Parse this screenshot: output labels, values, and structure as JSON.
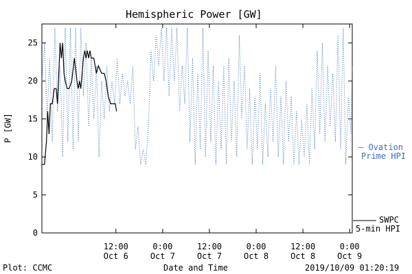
{
  "chart_data": {
    "type": "line",
    "title": "Hemispheric Power [GW]",
    "ylabel": "P [GW]",
    "xlabel": "Date and Time",
    "ylim": [
      0,
      27.5
    ],
    "yticks": [
      0,
      5,
      10,
      15,
      20,
      25
    ],
    "xlim": [
      "2019-10-05T17:00",
      "2019-10-09T00:40"
    ],
    "xticks": [
      {
        "t": "2019-10-06T12:00",
        "label1": "12:00",
        "label2": "Oct 6"
      },
      {
        "t": "2019-10-07T00:00",
        "label1": "0:00",
        "label2": "Oct 7"
      },
      {
        "t": "2019-10-07T12:00",
        "label1": "12:00",
        "label2": "Oct 7"
      },
      {
        "t": "2019-10-08T00:00",
        "label1": "0:00",
        "label2": "Oct 8"
      },
      {
        "t": "2019-10-08T12:00",
        "label1": "12:00",
        "label2": "Oct 8"
      },
      {
        "t": "2019-10-09T00:00",
        "label1": "0:00",
        "label2": "Oct 9"
      }
    ],
    "grid": false,
    "legend_position": "right",
    "series": [
      {
        "name": "SWPC 5-min HPI",
        "name_lines": [
          "SWPC",
          "5-min HPI"
        ],
        "color": "#000000",
        "style": "solid",
        "points": [
          [
            "2019-10-05T17:00",
            9
          ],
          [
            "2019-10-05T17:40",
            9
          ],
          [
            "2019-10-05T18:10",
            12
          ],
          [
            "2019-10-05T18:30",
            16
          ],
          [
            "2019-10-05T18:50",
            13
          ],
          [
            "2019-10-05T19:10",
            17
          ],
          [
            "2019-10-05T19:40",
            17
          ],
          [
            "2019-10-05T20:10",
            19
          ],
          [
            "2019-10-05T20:40",
            19
          ],
          [
            "2019-10-05T21:00",
            17
          ],
          [
            "2019-10-05T21:20",
            21
          ],
          [
            "2019-10-05T21:40",
            25
          ],
          [
            "2019-10-05T22:00",
            23
          ],
          [
            "2019-10-05T22:20",
            25
          ],
          [
            "2019-10-05T22:40",
            21
          ],
          [
            "2019-10-05T23:00",
            20
          ],
          [
            "2019-10-05T23:30",
            19
          ],
          [
            "2019-10-06T00:00",
            19
          ],
          [
            "2019-10-06T00:40",
            20
          ],
          [
            "2019-10-06T01:20",
            23
          ],
          [
            "2019-10-06T02:00",
            20
          ],
          [
            "2019-10-06T02:20",
            19
          ],
          [
            "2019-10-06T02:40",
            20
          ],
          [
            "2019-10-06T03:00",
            19
          ],
          [
            "2019-10-06T03:40",
            23
          ],
          [
            "2019-10-06T04:00",
            24
          ],
          [
            "2019-10-06T04:20",
            23
          ],
          [
            "2019-10-06T04:40",
            24
          ],
          [
            "2019-10-06T05:00",
            23
          ],
          [
            "2019-10-06T05:20",
            24
          ],
          [
            "2019-10-06T05:40",
            23
          ],
          [
            "2019-10-06T06:20",
            23
          ],
          [
            "2019-10-06T07:00",
            21
          ],
          [
            "2019-10-06T07:30",
            22
          ],
          [
            "2019-10-06T08:20",
            21
          ],
          [
            "2019-10-06T09:00",
            21
          ],
          [
            "2019-10-06T09:30",
            20
          ],
          [
            "2019-10-06T10:00",
            18
          ],
          [
            "2019-10-06T10:40",
            17
          ],
          [
            "2019-10-06T11:20",
            17
          ],
          [
            "2019-10-06T11:50",
            17
          ],
          [
            "2019-10-06T12:10",
            16
          ]
        ]
      },
      {
        "name": "Ovation Prime HPI",
        "name_lines": [
          "— Ovation",
          "Prime HPI"
        ],
        "color": "#3a6fc4",
        "style": "dotted",
        "points": [
          [
            "2019-10-05T17:00",
            20
          ],
          [
            "2019-10-05T17:40",
            25
          ],
          [
            "2019-10-05T18:20",
            15
          ],
          [
            "2019-10-05T19:00",
            23
          ],
          [
            "2019-10-05T19:40",
            12
          ],
          [
            "2019-10-05T20:20",
            27
          ],
          [
            "2019-10-05T21:00",
            16
          ],
          [
            "2019-10-05T21:40",
            22
          ],
          [
            "2019-10-05T22:20",
            10
          ],
          [
            "2019-10-05T23:00",
            27
          ],
          [
            "2019-10-05T23:40",
            12
          ],
          [
            "2019-10-06T00:20",
            27
          ],
          [
            "2019-10-06T01:00",
            11
          ],
          [
            "2019-10-06T01:40",
            27
          ],
          [
            "2019-10-06T02:20",
            12
          ],
          [
            "2019-10-06T03:00",
            27
          ],
          [
            "2019-10-06T03:40",
            18
          ],
          [
            "2019-10-06T04:20",
            25
          ],
          [
            "2019-10-06T05:00",
            14
          ],
          [
            "2019-10-06T05:40",
            23
          ],
          [
            "2019-10-06T06:20",
            15
          ],
          [
            "2019-10-06T07:00",
            22
          ],
          [
            "2019-10-06T07:40",
            10
          ],
          [
            "2019-10-06T08:20",
            20
          ],
          [
            "2019-10-06T09:00",
            15
          ],
          [
            "2019-10-06T09:40",
            22
          ],
          [
            "2019-10-06T10:20",
            16
          ],
          [
            "2019-10-06T11:00",
            20
          ],
          [
            "2019-10-06T11:40",
            17
          ],
          [
            "2019-10-06T12:20",
            23
          ],
          [
            "2019-10-06T13:00",
            17
          ],
          [
            "2019-10-06T13:40",
            21
          ],
          [
            "2019-10-06T14:20",
            18
          ],
          [
            "2019-10-06T15:00",
            20
          ],
          [
            "2019-10-06T15:40",
            17
          ],
          [
            "2019-10-06T16:20",
            22
          ],
          [
            "2019-10-06T17:00",
            11
          ],
          [
            "2019-10-06T17:40",
            14
          ],
          [
            "2019-10-06T18:20",
            9
          ],
          [
            "2019-10-06T19:00",
            11
          ],
          [
            "2019-10-06T19:40",
            9
          ],
          [
            "2019-10-06T20:20",
            14
          ],
          [
            "2019-10-06T21:00",
            24
          ],
          [
            "2019-10-06T21:40",
            20
          ],
          [
            "2019-10-06T22:20",
            26
          ],
          [
            "2019-10-06T23:00",
            22
          ],
          [
            "2019-10-06T23:40",
            27
          ],
          [
            "2019-10-07T00:20",
            20
          ],
          [
            "2019-10-07T01:00",
            27
          ],
          [
            "2019-10-07T01:40",
            18
          ],
          [
            "2019-10-07T02:20",
            27
          ],
          [
            "2019-10-07T03:00",
            20
          ],
          [
            "2019-10-07T03:40",
            27
          ],
          [
            "2019-10-07T04:20",
            16
          ],
          [
            "2019-10-07T05:00",
            22
          ],
          [
            "2019-10-07T05:40",
            17
          ],
          [
            "2019-10-07T06:20",
            27
          ],
          [
            "2019-10-07T07:00",
            12
          ],
          [
            "2019-10-07T07:40",
            23
          ],
          [
            "2019-10-07T08:20",
            9
          ],
          [
            "2019-10-07T09:00",
            21
          ],
          [
            "2019-10-07T09:40",
            11
          ],
          [
            "2019-10-07T10:20",
            27
          ],
          [
            "2019-10-07T11:00",
            10
          ],
          [
            "2019-10-07T11:40",
            24
          ],
          [
            "2019-10-07T12:20",
            12
          ],
          [
            "2019-10-07T13:00",
            22
          ],
          [
            "2019-10-07T13:40",
            9
          ],
          [
            "2019-10-07T14:20",
            20
          ],
          [
            "2019-10-07T15:00",
            11
          ],
          [
            "2019-10-07T15:40",
            22
          ],
          [
            "2019-10-07T16:20",
            9
          ],
          [
            "2019-10-07T17:00",
            23
          ],
          [
            "2019-10-07T17:40",
            12
          ],
          [
            "2019-10-07T18:20",
            20
          ],
          [
            "2019-10-07T19:00",
            10
          ],
          [
            "2019-10-07T19:40",
            26
          ],
          [
            "2019-10-07T20:20",
            15
          ],
          [
            "2019-10-07T21:00",
            22
          ],
          [
            "2019-10-07T21:40",
            11
          ],
          [
            "2019-10-07T22:20",
            19
          ],
          [
            "2019-10-07T23:00",
            9
          ],
          [
            "2019-10-07T23:40",
            18
          ],
          [
            "2019-10-08T00:20",
            11
          ],
          [
            "2019-10-08T01:00",
            21
          ],
          [
            "2019-10-08T01:40",
            9
          ],
          [
            "2019-10-08T02:20",
            17
          ],
          [
            "2019-10-08T03:00",
            10
          ],
          [
            "2019-10-08T03:40",
            19
          ],
          [
            "2019-10-08T04:20",
            12
          ],
          [
            "2019-10-08T05:00",
            22
          ],
          [
            "2019-10-08T05:40",
            10
          ],
          [
            "2019-10-08T06:20",
            18
          ],
          [
            "2019-10-08T07:00",
            9
          ],
          [
            "2019-10-08T07:40",
            20
          ],
          [
            "2019-10-08T08:20",
            12
          ],
          [
            "2019-10-08T09:00",
            18
          ],
          [
            "2019-10-08T09:40",
            9
          ],
          [
            "2019-10-08T10:20",
            16
          ],
          [
            "2019-10-08T11:00",
            9
          ],
          [
            "2019-10-08T11:40",
            15
          ],
          [
            "2019-10-08T12:20",
            10
          ],
          [
            "2019-10-08T13:00",
            17
          ],
          [
            "2019-10-08T13:40",
            9
          ],
          [
            "2019-10-08T14:20",
            19
          ],
          [
            "2019-10-08T15:00",
            11
          ],
          [
            "2019-10-08T15:40",
            24
          ],
          [
            "2019-10-08T16:20",
            13
          ],
          [
            "2019-10-08T17:00",
            25
          ],
          [
            "2019-10-08T17:40",
            12
          ],
          [
            "2019-10-08T18:20",
            22
          ],
          [
            "2019-10-08T19:00",
            14
          ],
          [
            "2019-10-08T19:40",
            21
          ],
          [
            "2019-10-08T20:20",
            12
          ],
          [
            "2019-10-08T21:00",
            26
          ],
          [
            "2019-10-08T21:40",
            11
          ],
          [
            "2019-10-08T22:20",
            27
          ],
          [
            "2019-10-08T23:00",
            9
          ],
          [
            "2019-10-08T23:40",
            18
          ],
          [
            "2019-10-09T00:20",
            13
          ],
          [
            "2019-10-09T00:40",
            22
          ]
        ]
      }
    ]
  },
  "footer": {
    "left": "Plot: CCMC",
    "center": "Date and Time",
    "right": "2019/10/09 01:20:19"
  }
}
